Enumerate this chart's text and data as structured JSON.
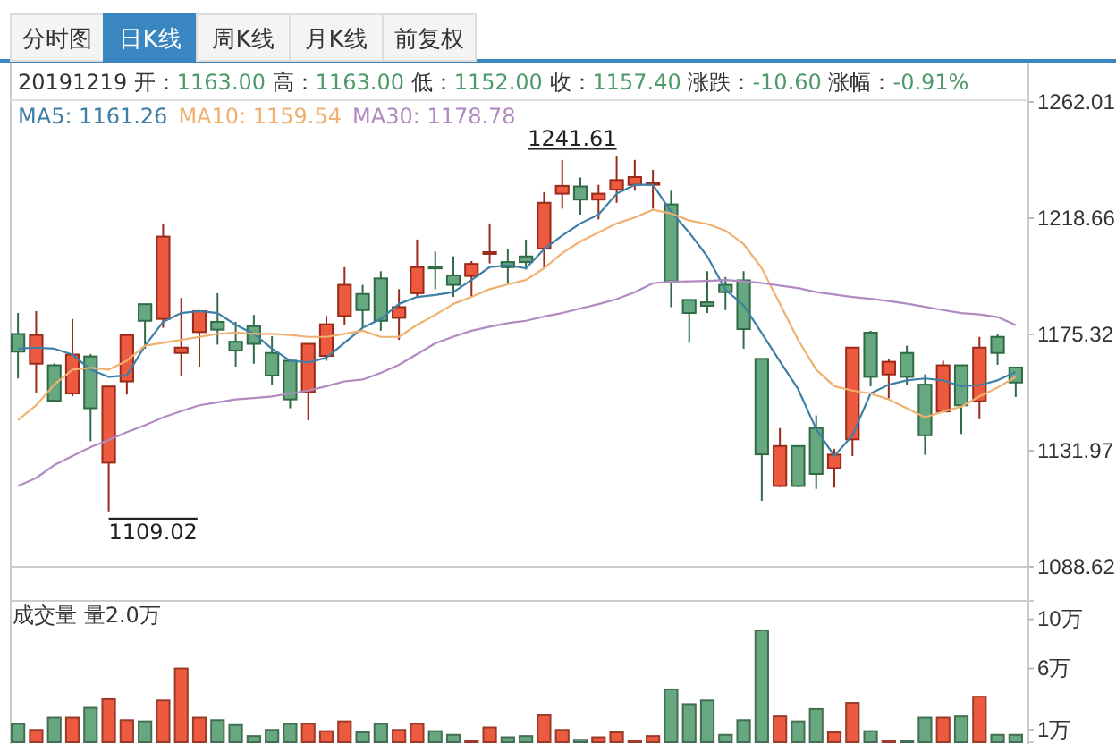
{
  "chart_data": [
    {
      "type": "candlestick",
      "title": "20191219 开：1163.00 高：1163.00 低：1152.00 收：1157.40 涨跌：-10.60 涨幅：-0.91%",
      "categories": [
        null,
        null,
        null,
        null,
        null,
        null,
        null,
        null,
        null,
        null,
        null,
        null,
        null,
        null,
        null,
        null,
        null,
        null,
        null,
        null,
        null,
        null,
        null,
        null,
        null,
        null,
        null,
        null,
        null,
        null,
        null,
        null,
        null,
        null,
        null,
        null,
        null,
        null,
        null,
        null,
        null,
        null,
        null,
        null,
        null,
        null,
        null,
        null,
        null,
        null,
        null,
        null,
        null,
        null,
        null,
        null
      ],
      "ohlc": [
        [
          1175.5,
          1183.3,
          1158.9,
          1168.9
        ],
        [
          1164.4,
          1184.0,
          1153.3,
          1175.1
        ],
        [
          1163.8,
          1164.5,
          1150.0,
          1150.6
        ],
        [
          1153.3,
          1181.1,
          1152.2,
          1167.8
        ],
        [
          1167.1,
          1168.0,
          1135.5,
          1147.8
        ],
        [
          1127.5,
          1156.0,
          1109.02,
          1155.9
        ],
        [
          1157.8,
          1175.5,
          1152.9,
          1175.1
        ],
        [
          1186.6,
          1186.8,
          1170.0,
          1180.4
        ],
        [
          1181.1,
          1216.7,
          1177.8,
          1211.8
        ],
        [
          1168.4,
          1188.9,
          1160.0,
          1170.4
        ],
        [
          1176.2,
          1184.3,
          1163.3,
          1184.0
        ],
        [
          1180.0,
          1190.7,
          1171.5,
          1177.1
        ],
        [
          1172.6,
          1180.0,
          1163.3,
          1169.3
        ],
        [
          1178.4,
          1182.6,
          1164.4,
          1171.8
        ],
        [
          1168.4,
          1174.6,
          1156.6,
          1160.0
        ],
        [
          1165.5,
          1165.6,
          1147.8,
          1151.1
        ],
        [
          1153.8,
          1172.0,
          1143.3,
          1171.8
        ],
        [
          1167.3,
          1182.2,
          1165.5,
          1179.1
        ],
        [
          1182.2,
          1200.4,
          1178.9,
          1193.8
        ],
        [
          1190.4,
          1193.8,
          1177.8,
          1184.4
        ],
        [
          1196.2,
          1198.9,
          1176.7,
          1180.4
        ],
        [
          1181.5,
          1192.2,
          1173.3,
          1185.5
        ],
        [
          1190.7,
          1210.7,
          1189.3,
          1200.4
        ],
        [
          1200.6,
          1206.2,
          1192.2,
          1200.0
        ],
        [
          1197.3,
          1204.4,
          1189.3,
          1193.8
        ],
        [
          1197.1,
          1202.7,
          1189.3,
          1201.6
        ],
        [
          1205.6,
          1216.7,
          1201.8,
          1206.0
        ],
        [
          1202.3,
          1207.1,
          1194.4,
          1200.4
        ],
        [
          1204.4,
          1210.7,
          1199.5,
          1202.3
        ],
        [
          1207.3,
          1228.4,
          1200.0,
          1224.4
        ],
        [
          1227.8,
          1240.4,
          1222.2,
          1230.7
        ],
        [
          1230.5,
          1233.8,
          1220.0,
          1225.6
        ],
        [
          1225.6,
          1231.1,
          1218.2,
          1227.8
        ],
        [
          1229.3,
          1241.61,
          1224.4,
          1232.9
        ],
        [
          1231.1,
          1240.4,
          1228.9,
          1234.0
        ],
        [
          1231.6,
          1236.7,
          1222.2,
          1231.8
        ],
        [
          1223.8,
          1228.9,
          1185.5,
          1195.1
        ],
        [
          1188.2,
          1188.3,
          1172.2,
          1183.3
        ],
        [
          1187.3,
          1198.9,
          1183.3,
          1186.0
        ],
        [
          1193.8,
          1196.7,
          1184.4,
          1191.1
        ],
        [
          1195.5,
          1198.9,
          1170.0,
          1177.3
        ],
        [
          1166.2,
          1166.3,
          1113.3,
          1130.6
        ],
        [
          1118.8,
          1140.4,
          1118.4,
          1133.7
        ],
        [
          1133.7,
          1133.8,
          1118.4,
          1118.8
        ],
        [
          1140.4,
          1145.1,
          1117.7,
          1123.3
        ],
        [
          1125.5,
          1132.6,
          1118.2,
          1130.5
        ],
        [
          1136.2,
          1170.6,
          1130.0,
          1170.4
        ],
        [
          1176.0,
          1176.7,
          1156.0,
          1159.5
        ],
        [
          1160.4,
          1166.2,
          1151.5,
          1165.1
        ],
        [
          1168.4,
          1171.1,
          1156.6,
          1159.5
        ],
        [
          1156.6,
          1160.4,
          1130.4,
          1137.7
        ],
        [
          1146.6,
          1165.5,
          1146.2,
          1163.8
        ],
        [
          1163.8,
          1163.9,
          1138.2,
          1148.9
        ],
        [
          1150.4,
          1174.4,
          1143.7,
          1170.4
        ],
        [
          1174.4,
          1175.5,
          1164.0,
          1168.4
        ],
        [
          1163.0,
          1163.0,
          1152.0,
          1157.4
        ]
      ],
      "series": [
        {
          "name": "MA5: 1161.26",
          "type": "line",
          "color": "#3d7fa6",
          "values": [
            1170.0,
            1170.4,
            1170.0,
            1167.8,
            1162.2,
            1159.5,
            1160.0,
            1171.1,
            1180.0,
            1183.3,
            1184.0,
            1183.3,
            1178.9,
            1175.5,
            1170.0,
            1165.5,
            1164.9,
            1166.6,
            1172.2,
            1177.8,
            1181.1,
            1186.7,
            1189.3,
            1190.0,
            1191.1,
            1195.6,
            1200.4,
            1201.1,
            1200.0,
            1207.1,
            1212.2,
            1216.7,
            1220.0,
            1227.8,
            1231.1,
            1231.1,
            1221.1,
            1213.3,
            1204.4,
            1192.0,
            1186.2,
            1175.8,
            1165.3,
            1155.0,
            1140.0,
            1130.0,
            1137.7,
            1153.3,
            1156.6,
            1158.2,
            1158.9,
            1158.2,
            1156.0,
            1156.4,
            1158.2,
            1161.3
          ]
        },
        {
          "name": "MA10: 1159.54",
          "type": "line",
          "color": "#f0b070",
          "values": [
            1143.3,
            1148.9,
            1156.6,
            1162.2,
            1162.9,
            1162.2,
            1165.5,
            1171.1,
            1172.2,
            1173.3,
            1174.4,
            1175.5,
            1176.0,
            1175.5,
            1175.5,
            1175.1,
            1174.4,
            1174.4,
            1175.5,
            1176.7,
            1174.4,
            1174.4,
            1178.9,
            1182.6,
            1186.7,
            1189.3,
            1192.2,
            1194.0,
            1195.6,
            1200.0,
            1205.6,
            1210.0,
            1213.3,
            1216.7,
            1218.9,
            1221.8,
            1220.4,
            1217.8,
            1216.5,
            1214.0,
            1209.0,
            1200.0,
            1186.7,
            1173.3,
            1162.2,
            1156.0,
            1154.4,
            1153.3,
            1151.1,
            1147.8,
            1144.4,
            1146.6,
            1148.4,
            1152.2,
            1155.5,
            1159.5
          ]
        },
        {
          "name": "MA30: 1178.78",
          "type": "line",
          "color": "#b08ac0",
          "values": [
            1118.8,
            1121.8,
            1126.6,
            1130.0,
            1133.3,
            1136.0,
            1138.9,
            1141.5,
            1144.4,
            1146.7,
            1148.9,
            1150.0,
            1151.1,
            1151.6,
            1152.2,
            1153.3,
            1154.4,
            1156.0,
            1157.8,
            1158.5,
            1161.0,
            1164.0,
            1168.0,
            1172.0,
            1174.5,
            1176.7,
            1178.2,
            1179.5,
            1180.4,
            1182.0,
            1183.3,
            1185.0,
            1186.6,
            1188.5,
            1191.1,
            1194.4,
            1195.0,
            1195.1,
            1195.3,
            1195.6,
            1195.1,
            1194.5,
            1193.5,
            1192.6,
            1191.1,
            1190.2,
            1189.3,
            1188.6,
            1187.8,
            1186.8,
            1185.6,
            1184.4,
            1183.3,
            1182.8,
            1181.8,
            1178.8
          ]
        }
      ],
      "ylim": [
        1088.62,
        1262.01
      ],
      "yticks": [
        1088.62,
        1131.97,
        1175.32,
        1218.66,
        1262.01
      ],
      "tick_labels": "y",
      "marker": "none",
      "line_style": "solid",
      "annotations": [
        "分时图",
        "日K线",
        "周K线",
        "月K线",
        "前复权",
        "1241.61",
        "1109.02"
      ]
    },
    {
      "type": "bar",
      "categories": [
        null,
        null,
        null,
        null,
        null,
        null,
        null,
        null,
        null,
        null,
        null,
        null,
        null,
        null,
        null,
        null,
        null,
        null,
        null,
        null,
        null,
        null,
        null,
        null,
        null,
        null,
        null,
        null,
        null,
        null,
        null,
        null,
        null,
        null,
        null,
        null,
        null,
        null,
        null,
        null,
        null,
        null,
        null,
        null,
        null,
        null,
        null,
        null,
        null,
        null,
        null,
        null,
        null,
        null,
        null,
        null
      ],
      "values": [
        1.5,
        1.0,
        2.0,
        2.0,
        2.8,
        3.5,
        1.8,
        1.7,
        3.4,
        6.0,
        2.0,
        1.8,
        1.4,
        0.5,
        1.0,
        1.5,
        1.5,
        0.9,
        1.7,
        0.8,
        1.5,
        1.0,
        1.5,
        0.9,
        0.6,
        0.1,
        1.2,
        0.4,
        0.5,
        2.2,
        1.0,
        0.2,
        0.4,
        0.8,
        0.1,
        0.5,
        4.3,
        3.1,
        3.4,
        0.6,
        1.8,
        9.1,
        2.1,
        1.7,
        2.7,
        0.8,
        3.2,
        0.9,
        0.1,
        0.1,
        2.0,
        2.0,
        2.1,
        3.7,
        0.6,
        0.6
      ],
      "colors": [
        "#67a881",
        "#ec5b3f",
        "#67a881",
        "#ec5b3f",
        "#67a881",
        "#ec5b3f",
        "#ec5b3f",
        "#67a881",
        "#ec5b3f",
        "#ec5b3f",
        "#ec5b3f",
        "#67a881",
        "#67a881",
        "#67a881",
        "#67a881",
        "#67a881",
        "#ec5b3f",
        "#ec5b3f",
        "#ec5b3f",
        "#67a881",
        "#67a881",
        "#ec5b3f",
        "#ec5b3f",
        "#67a881",
        "#67a881",
        "#ec5b3f",
        "#ec5b3f",
        "#67a881",
        "#67a881",
        "#ec5b3f",
        "#ec5b3f",
        "#67a881",
        "#ec5b3f",
        "#ec5b3f",
        "#ec5b3f",
        "#ec5b3f",
        "#67a881",
        "#67a881",
        "#67a881",
        "#67a881",
        "#67a881",
        "#67a881",
        "#ec5b3f",
        "#67a881",
        "#67a881",
        "#ec5b3f",
        "#ec5b3f",
        "#67a881",
        "#ec5b3f",
        "#67a881",
        "#67a881",
        "#ec5b3f",
        "#67a881",
        "#ec5b3f",
        "#67a881",
        "#67a881"
      ],
      "ylim": [
        0,
        11.5
      ],
      "yticks": [
        {
          "value": 1,
          "label": "1万"
        },
        {
          "value": 6,
          "label": "6万"
        },
        {
          "value": 10,
          "label": "10万"
        }
      ],
      "tick_labels": "y",
      "annotations": [
        "成交量 量2.0万"
      ]
    }
  ]
}
